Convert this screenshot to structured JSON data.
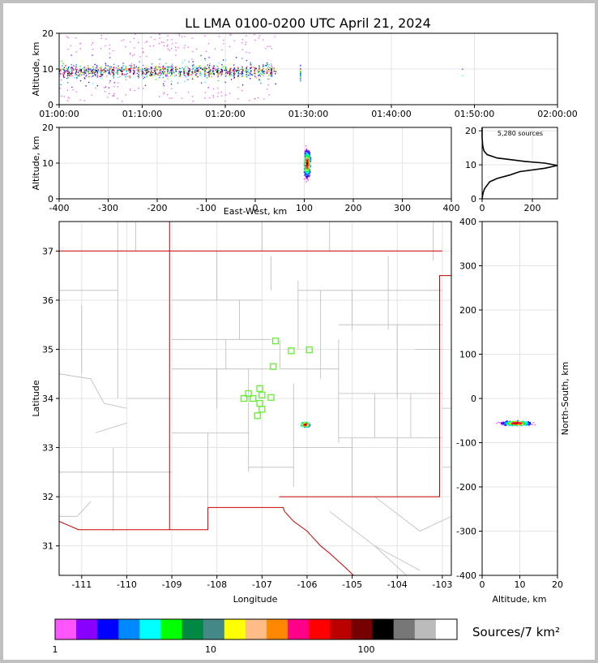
{
  "title": "LL LMA 0100-0200 UTC April 21, 2024",
  "colors": {
    "palette": [
      "#ff55ff",
      "#8800ff",
      "#0000ff",
      "#0088ff",
      "#00ffff",
      "#00ff00",
      "#008844",
      "#448888",
      "#ffff00",
      "#ffbb88",
      "#ff8800",
      "#ff0088",
      "#ff0000",
      "#bb0000",
      "#770000",
      "#000000",
      "#777777",
      "#bbbbbb",
      "#ffffff"
    ],
    "state_line": "#cc0000",
    "county_line": "#bbbbbb",
    "station": "#66ee33"
  },
  "colorbar": {
    "label": "Sources/7 km²",
    "ticks": [
      "1",
      "10",
      "100"
    ],
    "scale": "log"
  },
  "chart_data": [
    {
      "id": "time-altitude",
      "type": "scatter",
      "xlabel": "",
      "ylabel": "Altitude, km",
      "xticks": [
        "01:00:00",
        "01:10:00",
        "01:20:00",
        "01:30:00",
        "01:40:00",
        "01:50:00",
        "02:00:00"
      ],
      "xlim_minutes_after_0100": [
        0,
        60
      ],
      "ylim": [
        0,
        20
      ],
      "yticks": [
        0,
        10,
        20
      ],
      "activity": {
        "start_time": "01:00:00",
        "end_time": "01:26:00",
        "late_bursts": [
          "01:29:00",
          "01:48:30"
        ],
        "core_altitude_km": [
          6,
          13
        ],
        "sparse_altitude_km": [
          1,
          20
        ]
      },
      "grid": true
    },
    {
      "id": "ew-altitude",
      "type": "scatter",
      "xlabel": "East-West, km",
      "ylabel": "Altitude, km",
      "xlim": [
        -400,
        400
      ],
      "xticks": [
        -400,
        -300,
        -200,
        -100,
        0,
        100,
        200,
        300,
        400
      ],
      "ylim": [
        0,
        20
      ],
      "yticks": [
        0,
        10,
        20
      ],
      "cluster": {
        "ew_km": [
          90,
          125
        ],
        "altitude_km": [
          0,
          20
        ],
        "peak_ew_km": 105,
        "peak_altitude_km": 10
      },
      "grid": true
    },
    {
      "id": "altitude-histogram",
      "type": "line",
      "annotation": "5,280 sources",
      "xlim": [
        0,
        300
      ],
      "xticks": [
        0,
        200
      ],
      "ylim": [
        0,
        21
      ],
      "yticks": [
        0,
        10,
        20
      ],
      "profile": [
        [
          0,
          0
        ],
        [
          2,
          1
        ],
        [
          5,
          2
        ],
        [
          10,
          3
        ],
        [
          20,
          4
        ],
        [
          30,
          5
        ],
        [
          60,
          6
        ],
        [
          110,
          7
        ],
        [
          150,
          8
        ],
        [
          250,
          9
        ],
        [
          300,
          9.8
        ],
        [
          250,
          10.5
        ],
        [
          170,
          11
        ],
        [
          60,
          12
        ],
        [
          20,
          13
        ],
        [
          8,
          14
        ],
        [
          4,
          15
        ],
        [
          2,
          16
        ],
        [
          1,
          17
        ],
        [
          0,
          18
        ],
        [
          0,
          21
        ]
      ],
      "grid": true
    },
    {
      "id": "plan-view",
      "type": "scatter",
      "xlabel": "Longitude",
      "ylabel": "Latitude",
      "xlim": [
        -111.5,
        -102.8
      ],
      "ylim": [
        30.4,
        37.6
      ],
      "xticks": [
        -111,
        -110,
        -109,
        -108,
        -107,
        -106,
        -105,
        -104,
        -103
      ],
      "yticks": [
        31,
        32,
        33,
        34,
        35,
        36,
        37
      ],
      "cluster": {
        "lon": [
          -106.25,
          -105.9
        ],
        "lat": [
          33.38,
          33.58
        ],
        "peak_lon": -106.05,
        "peak_lat": 33.48
      },
      "stations": [
        {
          "lon": -106.7,
          "lat": 35.17
        },
        {
          "lon": -106.35,
          "lat": 34.97
        },
        {
          "lon": -105.95,
          "lat": 34.99
        },
        {
          "lon": -106.75,
          "lat": 34.65
        },
        {
          "lon": -107.05,
          "lat": 34.2
        },
        {
          "lon": -107.3,
          "lat": 34.1
        },
        {
          "lon": -107.4,
          "lat": 34.0
        },
        {
          "lon": -107.2,
          "lat": 34.0
        },
        {
          "lon": -107.0,
          "lat": 34.07
        },
        {
          "lon": -106.8,
          "lat": 34.02
        },
        {
          "lon": -107.05,
          "lat": 33.9
        },
        {
          "lon": -107.0,
          "lat": 33.78
        },
        {
          "lon": -107.1,
          "lat": 33.65
        }
      ],
      "grid": true
    },
    {
      "id": "altitude-ns",
      "type": "scatter",
      "xlabel": "Altitude, km",
      "ylabel": "North-South, km",
      "xlim": [
        0,
        20
      ],
      "xticks": [
        0,
        10,
        20
      ],
      "ylim": [
        -400,
        400
      ],
      "yticks": [
        -400,
        -300,
        -200,
        -100,
        0,
        100,
        200,
        300,
        400
      ],
      "cluster": {
        "altitude_km": [
          0,
          20
        ],
        "ns_km": [
          -68,
          -45
        ],
        "peak_altitude_km": 9,
        "peak_ns_km": -55
      },
      "grid": true
    }
  ]
}
